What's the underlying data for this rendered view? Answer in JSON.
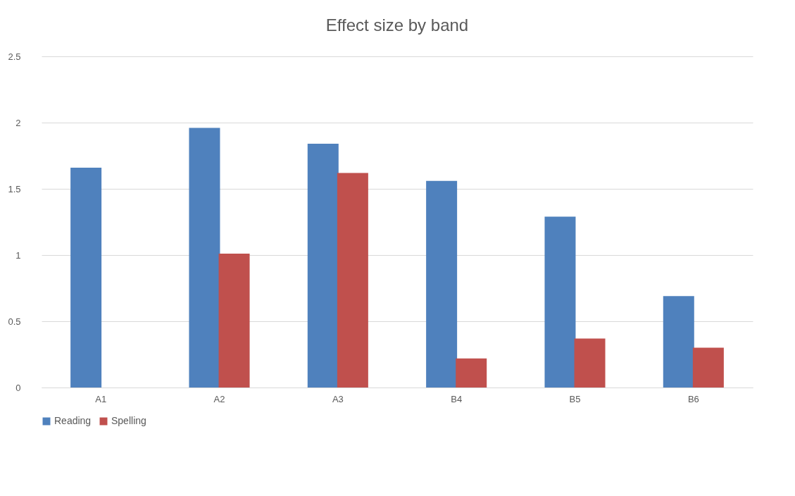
{
  "chart_data": {
    "type": "bar",
    "title": "Effect size by band",
    "categories": [
      "A1",
      "A2",
      "A3",
      "B4",
      "B5",
      "B6"
    ],
    "series": [
      {
        "name": "Reading",
        "color": "#4f81bd",
        "values": [
          1.66,
          1.96,
          1.84,
          1.56,
          1.29,
          0.69
        ]
      },
      {
        "name": "Spelling",
        "color": "#c0504d",
        "values": [
          null,
          1.01,
          1.62,
          0.22,
          0.37,
          0.3
        ]
      }
    ],
    "ylim": [
      0,
      2.5
    ],
    "yticks": [
      0,
      0.5,
      1,
      1.5,
      2,
      2.5
    ],
    "grid": "y",
    "legend": "bottom"
  }
}
